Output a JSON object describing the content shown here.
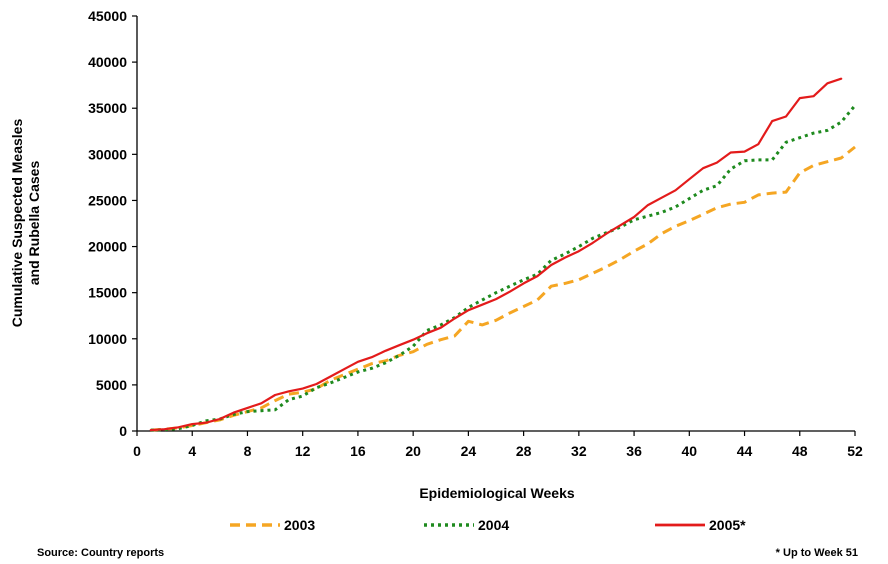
{
  "chart_data": {
    "type": "line",
    "title": "",
    "xlabel": "Epidemiological Weeks",
    "ylabel_lines": [
      "Cumulative Suspected Measles",
      "and Rubella Cases"
    ],
    "xlim": [
      0,
      52
    ],
    "ylim": [
      0,
      45000
    ],
    "x_ticks": [
      0,
      4,
      8,
      12,
      16,
      20,
      24,
      28,
      32,
      36,
      40,
      44,
      48,
      52
    ],
    "y_ticks": [
      0,
      5000,
      10000,
      15000,
      20000,
      25000,
      30000,
      35000,
      40000,
      45000
    ],
    "grid": false,
    "legend_position": "bottom",
    "series": [
      {
        "name": "2003",
        "color": "#f5a623",
        "style": "dash",
        "x": [
          1,
          2,
          3,
          4,
          5,
          6,
          7,
          8,
          9,
          10,
          11,
          12,
          13,
          14,
          15,
          16,
          17,
          18,
          19,
          20,
          21,
          22,
          23,
          24,
          25,
          26,
          27,
          28,
          29,
          30,
          31,
          32,
          33,
          34,
          35,
          36,
          37,
          38,
          39,
          40,
          41,
          42,
          43,
          44,
          45,
          46,
          47,
          48,
          49,
          50,
          51,
          52
        ],
        "values": [
          100,
          200,
          350,
          600,
          900,
          1200,
          1700,
          2100,
          2500,
          3300,
          4000,
          4200,
          4600,
          5500,
          6100,
          6700,
          7300,
          7600,
          8200,
          8600,
          9400,
          9900,
          10300,
          11900,
          11500,
          12000,
          12800,
          13500,
          14200,
          15700,
          16000,
          16400,
          17100,
          17800,
          18600,
          19500,
          20300,
          21400,
          22200,
          22800,
          23500,
          24200,
          24600,
          24800,
          25600,
          25800,
          25900,
          28000,
          28800,
          29200,
          29600,
          30800
        ]
      },
      {
        "name": "2004",
        "color": "#1e8a1e",
        "style": "dot",
        "x": [
          1,
          2,
          3,
          4,
          5,
          6,
          7,
          8,
          9,
          10,
          11,
          12,
          13,
          14,
          15,
          16,
          17,
          18,
          19,
          20,
          21,
          22,
          23,
          24,
          25,
          26,
          27,
          28,
          29,
          30,
          31,
          32,
          33,
          34,
          35,
          36,
          37,
          38,
          39,
          40,
          41,
          42,
          43,
          44,
          45,
          46,
          47,
          48,
          49,
          50,
          51,
          52
        ],
        "values": [
          100,
          150,
          250,
          600,
          1100,
          1300,
          1800,
          2100,
          2200,
          2300,
          3400,
          3800,
          4700,
          5200,
          5800,
          6400,
          6800,
          7400,
          8200,
          9200,
          10900,
          11500,
          12300,
          13400,
          14200,
          15000,
          15700,
          16400,
          17000,
          18500,
          19200,
          20000,
          20900,
          21500,
          22100,
          22900,
          23300,
          23700,
          24300,
          25200,
          26100,
          26600,
          28400,
          29300,
          29400,
          29400,
          31300,
          31800,
          32300,
          32600,
          33500,
          35300
        ]
      },
      {
        "name": "2005*",
        "color": "#e31b1b",
        "style": "solid",
        "x": [
          1,
          2,
          3,
          4,
          5,
          6,
          7,
          8,
          9,
          10,
          11,
          12,
          13,
          14,
          15,
          16,
          17,
          18,
          19,
          20,
          21,
          22,
          23,
          24,
          25,
          26,
          27,
          28,
          29,
          30,
          31,
          32,
          33,
          34,
          35,
          36,
          37,
          38,
          39,
          40,
          41,
          42,
          43,
          44,
          45,
          46,
          47,
          48,
          49,
          50,
          51
        ],
        "values": [
          100,
          200,
          400,
          750,
          900,
          1300,
          2000,
          2500,
          3000,
          3900,
          4300,
          4600,
          5100,
          5900,
          6700,
          7500,
          8000,
          8700,
          9300,
          9900,
          10600,
          11200,
          12200,
          13100,
          13700,
          14300,
          15100,
          16000,
          16800,
          18000,
          18800,
          19500,
          20400,
          21400,
          22300,
          23200,
          24500,
          25300,
          26100,
          27300,
          28500,
          29100,
          30200,
          30300,
          31100,
          33600,
          34100,
          36100,
          36300,
          37700,
          38200
        ]
      }
    ]
  },
  "footer": {
    "source": "Source: Country reports",
    "note": "* Up to Week 51"
  }
}
